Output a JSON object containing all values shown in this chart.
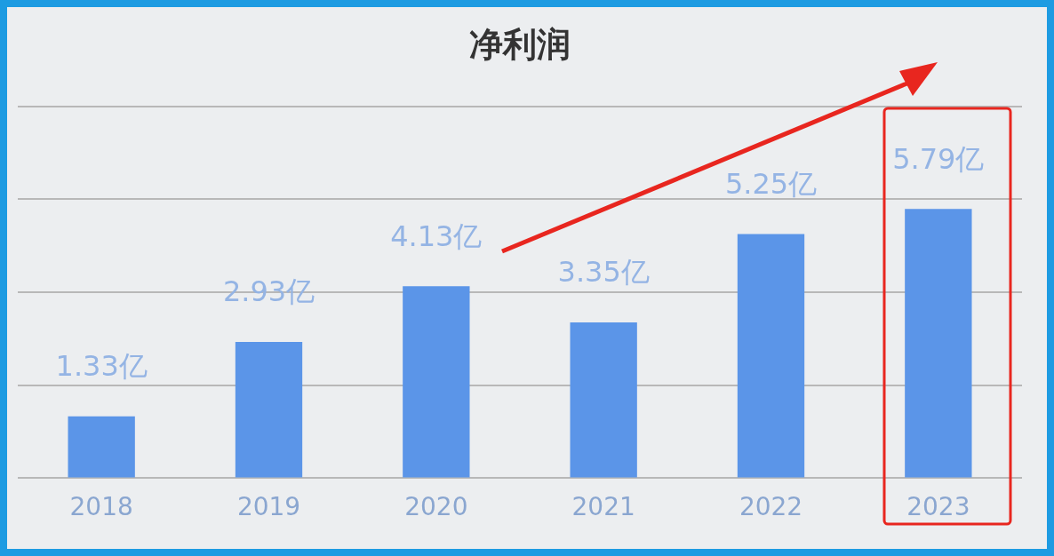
{
  "chart_data": {
    "type": "bar",
    "title": "净利润",
    "categories": [
      "2018",
      "2019",
      "2020",
      "2021",
      "2022",
      "2023"
    ],
    "values": [
      1.33,
      2.93,
      4.13,
      3.35,
      5.25,
      5.79
    ],
    "value_labels": [
      "1.33亿",
      "2.93亿",
      "4.13亿",
      "3.35亿",
      "5.25亿",
      "5.79亿"
    ],
    "color": "#5b95e8",
    "ylim": [
      0,
      8
    ],
    "yticks": [
      {
        "value": 0,
        "label": null
      },
      {
        "value": 2,
        "label": null
      },
      {
        "value": 4,
        "label": null
      },
      {
        "value": 6,
        "label": null
      },
      {
        "value": 8,
        "label": null
      }
    ],
    "tick_labels": "x",
    "grid": "y"
  }
}
